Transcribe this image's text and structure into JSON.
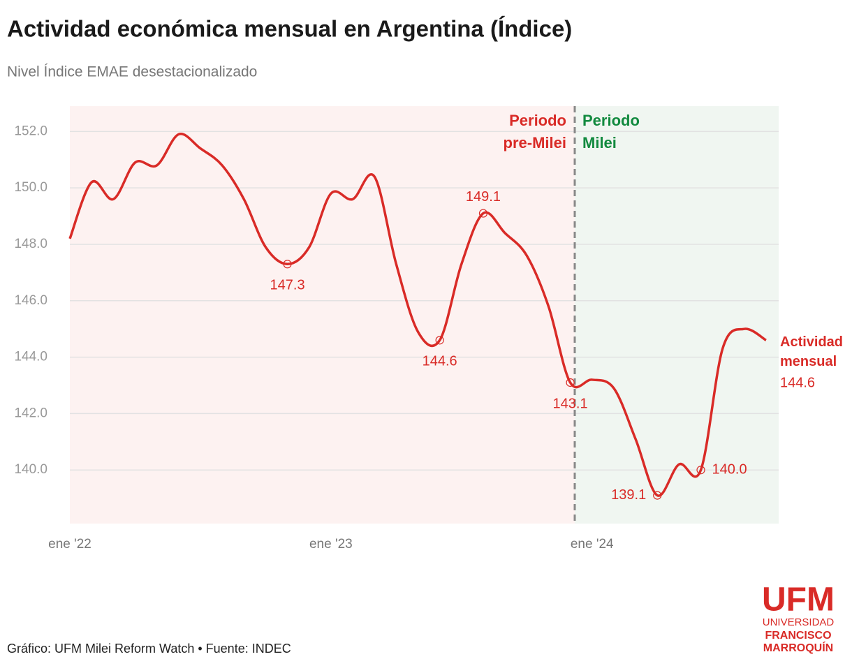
{
  "chart_data": {
    "type": "line",
    "title": "Actividad económica mensual en Argentina (Índice)",
    "subtitle": "Nivel Índice EMAE desestacionalizado",
    "categories": [
      "ene '22",
      null,
      null,
      null,
      null,
      null,
      null,
      null,
      null,
      null,
      null,
      null,
      "ene '23",
      null,
      null,
      null,
      null,
      null,
      null,
      null,
      null,
      null,
      null,
      null,
      "ene '24",
      null,
      null,
      null,
      null,
      null,
      null,
      null,
      null
    ],
    "series": [
      {
        "name": "Actividad mensual",
        "color": "#d92b27",
        "values": [
          148.2,
          150.2,
          149.6,
          150.9,
          150.8,
          151.9,
          151.4,
          150.8,
          149.6,
          147.9,
          147.3,
          147.9,
          149.8,
          149.6,
          150.4,
          147.3,
          144.9,
          144.6,
          147.3,
          149.1,
          148.4,
          147.6,
          145.8,
          143.1,
          143.2,
          142.9,
          141.1,
          139.1,
          140.2,
          140.0,
          144.3,
          145.0,
          144.6
        ],
        "value_labels": [
          null,
          null,
          null,
          null,
          null,
          null,
          null,
          null,
          null,
          null,
          "147.3",
          null,
          null,
          null,
          null,
          null,
          null,
          "144.6",
          null,
          "149.1",
          null,
          null,
          null,
          "143.1",
          null,
          null,
          null,
          "139.1",
          null,
          "140.0",
          null,
          null,
          "144.6"
        ]
      }
    ],
    "ylim": [
      138.1,
      152.9
    ],
    "yticks": [
      {
        "value": 140,
        "label": "140.0"
      },
      {
        "value": 142,
        "label": "142.0"
      },
      {
        "value": 144,
        "label": "144.0"
      },
      {
        "value": 146,
        "label": "146.0"
      },
      {
        "value": 148,
        "label": "148.0"
      },
      {
        "value": 150,
        "label": "150.0"
      },
      {
        "value": 152,
        "label": "152.0"
      }
    ],
    "grid": true,
    "periods": [
      {
        "label": "Periodo pre-Milei",
        "color": "#d92b27",
        "fill": "#fdf2f1"
      },
      {
        "label": "Periodo Milei",
        "color": "#128a3f",
        "fill": "#f0f6f1"
      }
    ]
  },
  "footer": "Gráfico: UFM Milei Reform Watch • Fuente: INDEC",
  "logo": {
    "name": "UFM",
    "lines": [
      "UNIVERSIDAD",
      "FRANCISCO",
      "MARROQUÍN"
    ]
  }
}
